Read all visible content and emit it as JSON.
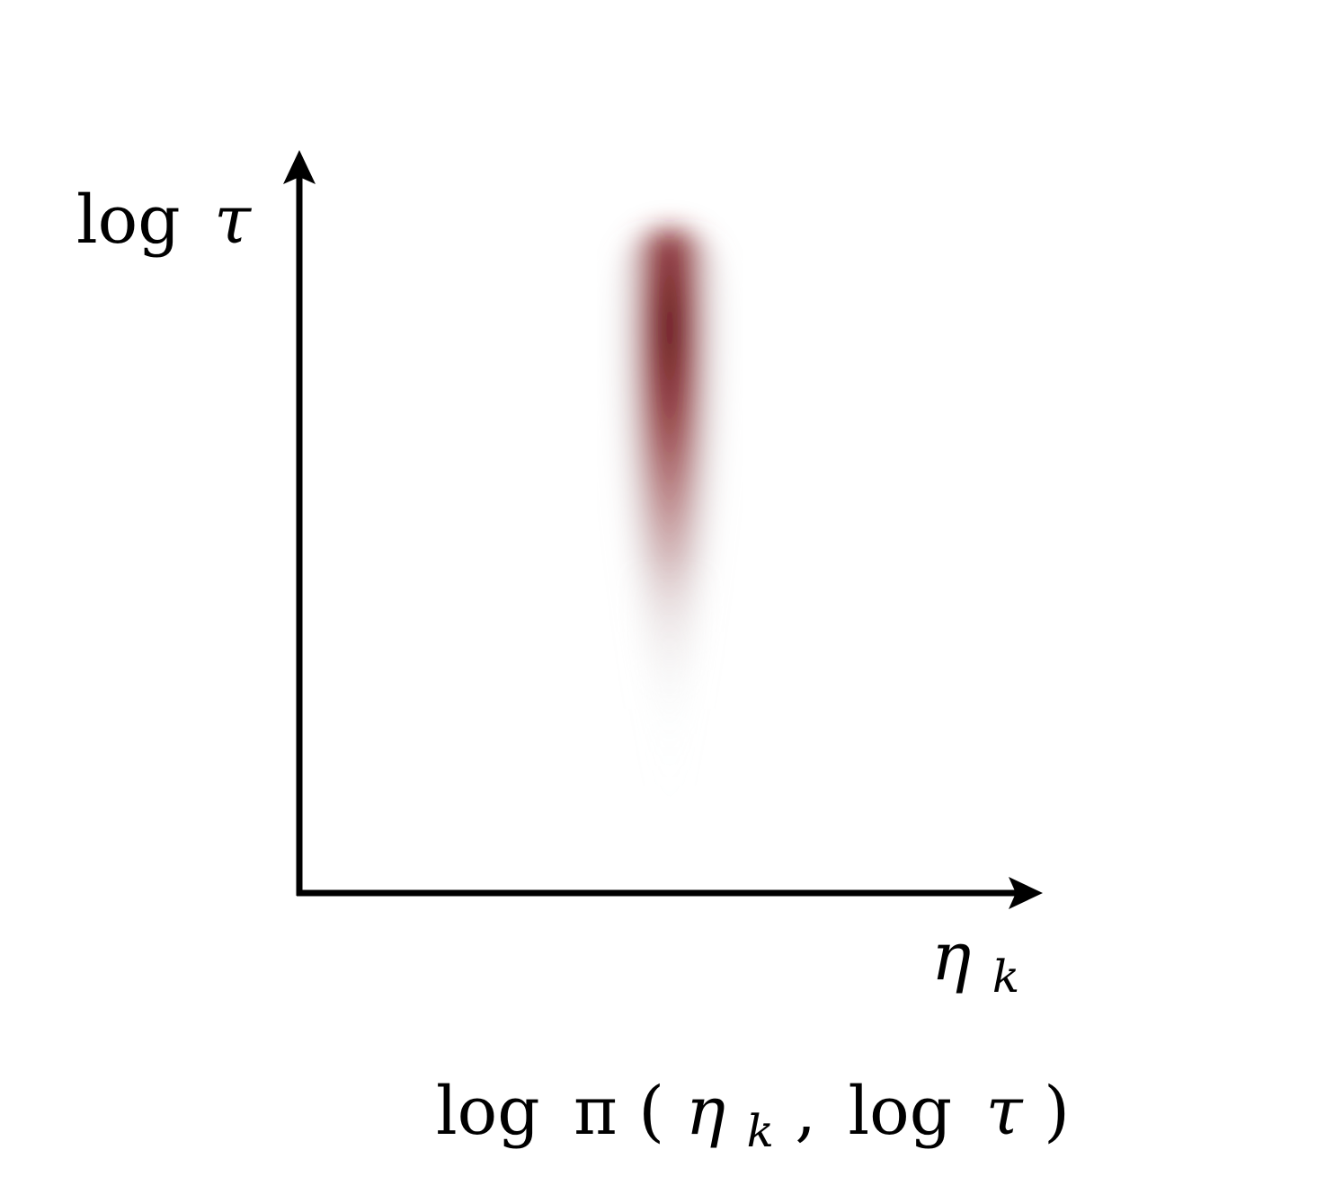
{
  "diagram": {
    "y_axis_label": {
      "fn": "log",
      "var": "τ"
    },
    "x_axis_label": {
      "var": "η",
      "sub": "k"
    },
    "caption": {
      "fn": "log",
      "pi": "π",
      "open": "(",
      "eta": "η",
      "eta_sub": "k",
      "comma": ",",
      "fn2": "log",
      "tau": "τ",
      "close": ")"
    },
    "density_color": "#7a0f14",
    "axis_color": "#000000"
  }
}
